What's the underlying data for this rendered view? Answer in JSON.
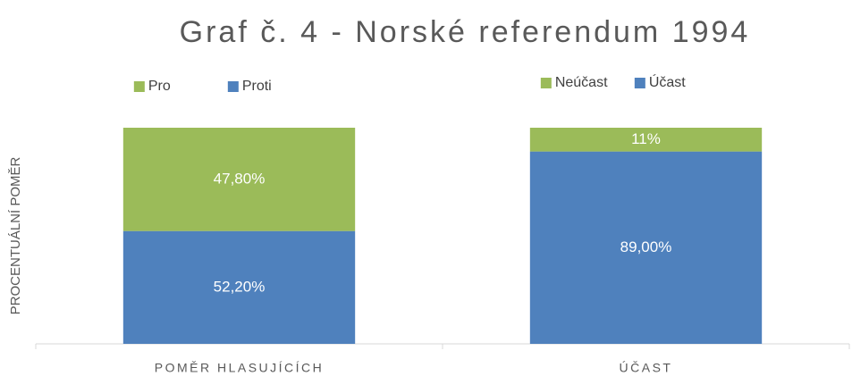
{
  "chart_data": {
    "type": "stacked_bar",
    "title": "Graf č. 4 - Norské referendum 1994",
    "y_label": "PROCENTUÁLNÍ POMĚR",
    "categories": [
      "POMĚR HLASUJÍCÍCH",
      "ÚČAST"
    ],
    "ylim": [
      0,
      100
    ],
    "series": [
      {
        "name": "Pro",
        "color": "#9bbb59",
        "values": [
          47.8,
          null
        ],
        "value_labels": [
          "47,80%",
          null
        ]
      },
      {
        "name": "Proti",
        "color": "#4f81bd",
        "values": [
          52.2,
          null
        ],
        "value_labels": [
          "52,20%",
          null
        ]
      },
      {
        "name": "Neúčast",
        "color": "#9bbb59",
        "values": [
          null,
          11
        ],
        "value_labels": [
          null,
          "11%"
        ]
      },
      {
        "name": "Účast",
        "color": "#4f81bd",
        "values": [
          null,
          89
        ],
        "value_labels": [
          null,
          "89,00%"
        ]
      }
    ]
  }
}
